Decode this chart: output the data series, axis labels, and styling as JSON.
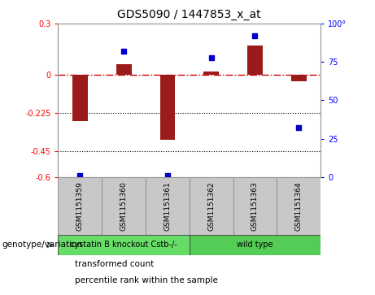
{
  "title": "GDS5090 / 1447853_x_at",
  "samples": [
    "GSM1151359",
    "GSM1151360",
    "GSM1151361",
    "GSM1151362",
    "GSM1151363",
    "GSM1151364"
  ],
  "transformed_count": [
    -0.27,
    0.06,
    -0.38,
    0.02,
    0.17,
    -0.04
  ],
  "percentile_rank": [
    1,
    82,
    1,
    78,
    92,
    32
  ],
  "ylim_left": [
    -0.6,
    0.3
  ],
  "ylim_right": [
    0,
    100
  ],
  "yticks_left": [
    0.3,
    0,
    -0.225,
    -0.45,
    -0.6
  ],
  "yticks_right": [
    100,
    75,
    50,
    25,
    0
  ],
  "hlines": [
    -0.225,
    -0.45
  ],
  "zero_line": 0,
  "bar_color": "#9B1A1A",
  "dot_color": "#0000CC",
  "background_color": "#FFFFFF",
  "plot_bg": "#FFFFFF",
  "grid_color": "#000000",
  "zero_line_color": "#CC0000",
  "groups": [
    {
      "label": "cystatin B knockout Cstb-/-",
      "samples": [
        0,
        1,
        2
      ],
      "color": "#66DD66"
    },
    {
      "label": "wild type",
      "samples": [
        3,
        4,
        5
      ],
      "color": "#55CC55"
    }
  ],
  "legend_items": [
    {
      "label": "transformed count",
      "color": "#9B1A1A"
    },
    {
      "label": "percentile rank within the sample",
      "color": "#0000CC"
    }
  ],
  "genotype_label": "genotype/variation",
  "bar_width": 0.35,
  "dot_size": 25
}
